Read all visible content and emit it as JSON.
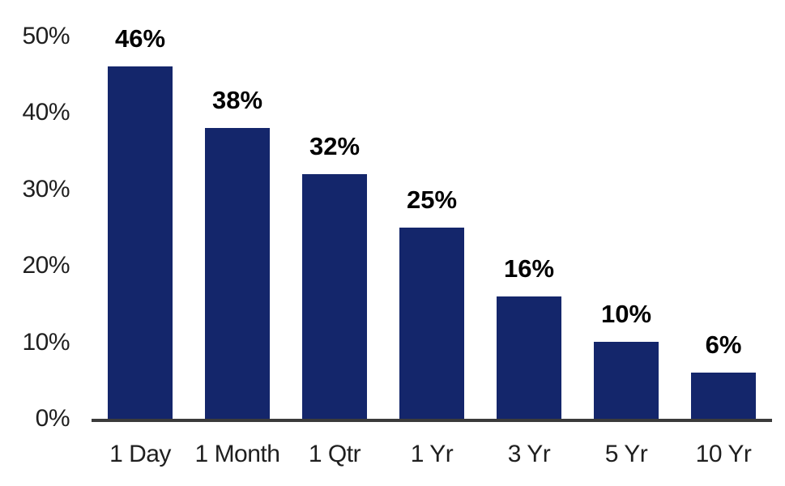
{
  "chart_data": {
    "type": "bar",
    "title": "",
    "xlabel": "",
    "ylabel": "",
    "categories": [
      "1 Day",
      "1 Month",
      "1 Qtr",
      "1 Yr",
      "3 Yr",
      "5 Yr",
      "10 Yr"
    ],
    "values": [
      46,
      38,
      32,
      25,
      16,
      10,
      6
    ],
    "value_labels": [
      "46%",
      "38%",
      "32%",
      "25%",
      "16%",
      "10%",
      "6%"
    ],
    "yticks": [
      0,
      10,
      20,
      30,
      40,
      50
    ],
    "ytick_labels": [
      "0%",
      "10%",
      "20%",
      "30%",
      "40%",
      "50%"
    ],
    "ylim": [
      0,
      50
    ],
    "grid": false,
    "legend": false,
    "colors": {
      "bar": "#14266b",
      "axis_line": "#3b3b3b",
      "tick_text": "#1f1f1f",
      "value_text": "#000000",
      "background": "#ffffff"
    }
  }
}
